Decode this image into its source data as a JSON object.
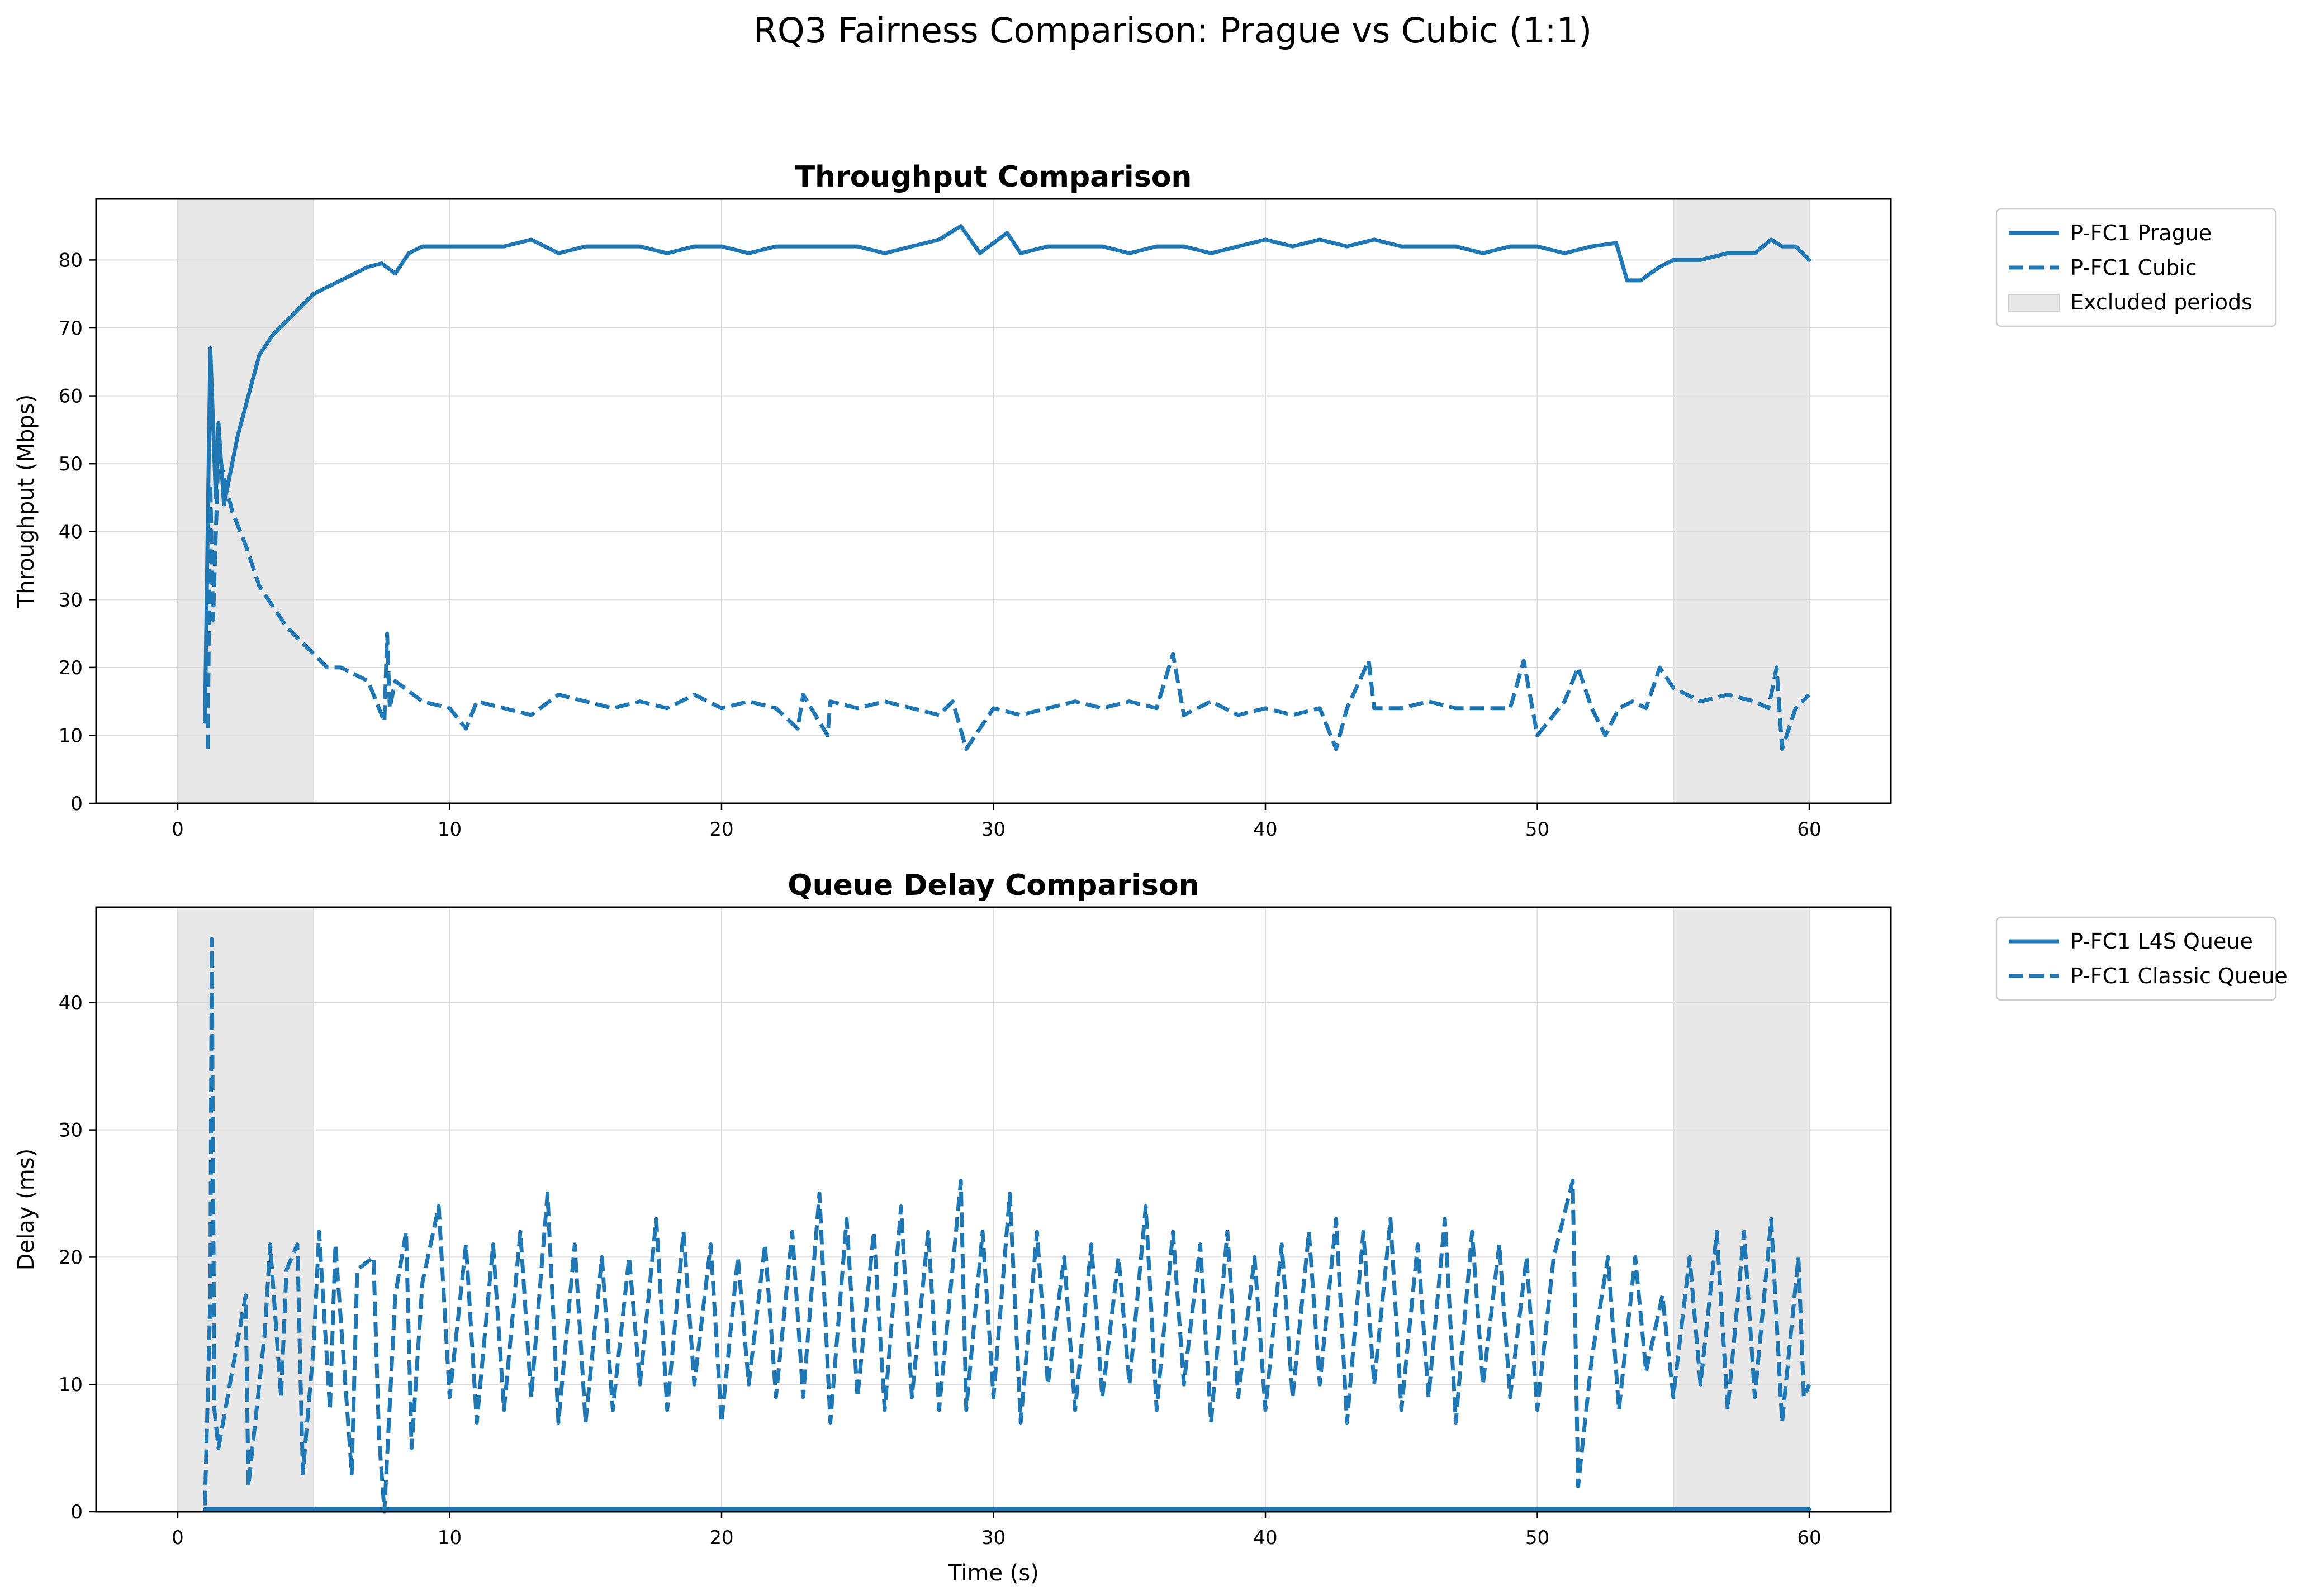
{
  "figure": {
    "suptitle": "RQ3 Fairness Comparison: Prague vs Cubic (1:1)"
  },
  "colors": {
    "series": "#1f77b4",
    "excluded": "#e8e8e8",
    "grid": "#dcdcdc"
  },
  "chart_data": [
    {
      "type": "line",
      "title": "Throughput Comparison",
      "xlabel": "",
      "ylabel": "Throughput (Mbps)",
      "xlim": [
        -3,
        63
      ],
      "ylim": [
        0,
        89
      ],
      "xticks": [
        0,
        10,
        20,
        30,
        40,
        50,
        60
      ],
      "yticks": [
        0,
        10,
        20,
        30,
        40,
        50,
        60,
        70,
        80
      ],
      "grid": true,
      "legend_position": "outside-upper-right",
      "excluded_periods": [
        [
          0,
          5
        ],
        [
          55,
          60
        ]
      ],
      "legend": [
        "P-FC1 Prague",
        "P-FC1 Cubic",
        "Excluded periods"
      ],
      "series": [
        {
          "name": "P-FC1 Prague",
          "style": "solid",
          "x": [
            1.0,
            1.2,
            1.4,
            1.5,
            1.7,
            1.9,
            2.2,
            2.6,
            3.0,
            3.5,
            4.0,
            4.5,
            5.0,
            5.5,
            6.0,
            6.5,
            7.0,
            7.5,
            8.0,
            8.5,
            9.0,
            10,
            11,
            12,
            13,
            14,
            15,
            16,
            17,
            18,
            19,
            20,
            21,
            22,
            23,
            24,
            25,
            26,
            27,
            28,
            28.8,
            29.5,
            30.5,
            31,
            32,
            33,
            34,
            35,
            36,
            37,
            38,
            39,
            40,
            41,
            42,
            43,
            44,
            45,
            46,
            47,
            48,
            49,
            50,
            51,
            52,
            52.9,
            53.3,
            53.8,
            54.5,
            55,
            56,
            57,
            58,
            58.6,
            59,
            59.5,
            60
          ],
          "y": [
            12,
            67,
            45,
            56,
            44,
            48,
            54,
            60,
            66,
            69,
            71,
            73,
            75,
            76,
            77,
            78,
            79,
            79.5,
            78,
            81,
            82,
            82,
            82,
            82,
            83,
            81,
            82,
            82,
            82,
            81,
            82,
            82,
            81,
            82,
            82,
            82,
            82,
            81,
            82,
            83,
            85,
            81,
            84,
            81,
            82,
            82,
            82,
            81,
            82,
            82,
            81,
            82,
            83,
            82,
            83,
            82,
            83,
            82,
            82,
            82,
            81,
            82,
            82,
            81,
            82,
            82.5,
            77,
            77,
            79,
            80,
            80,
            81,
            81,
            83,
            82,
            82,
            80
          ]
        },
        {
          "name": "P-FC1 Cubic",
          "style": "dashed",
          "x": [
            1.1,
            1.2,
            1.3,
            1.5,
            1.7,
            2.0,
            2.5,
            3.0,
            3.5,
            4.0,
            4.5,
            5.0,
            5.5,
            6.0,
            7.0,
            7.6,
            7.7,
            7.8,
            8.0,
            9,
            10,
            10.6,
            11,
            12,
            13,
            14,
            15,
            16,
            17,
            18,
            19,
            20,
            21,
            22,
            22.8,
            23,
            23.9,
            24,
            25,
            26,
            27,
            28,
            28.5,
            29,
            30,
            31,
            32,
            33,
            34,
            35,
            36,
            36.6,
            37,
            38,
            39,
            40,
            41,
            42,
            42.6,
            43,
            43.8,
            44,
            45,
            46,
            47,
            48,
            49,
            49.5,
            50,
            51,
            51.5,
            52,
            52.5,
            53,
            53.5,
            54,
            54.5,
            55,
            56,
            57,
            58,
            58.5,
            58.8,
            59,
            59.5,
            60
          ],
          "y": [
            8,
            47,
            27,
            52,
            48,
            43,
            38,
            32,
            29,
            26,
            24,
            22,
            20,
            20,
            18,
            12,
            25,
            14,
            18,
            15,
            14,
            11,
            15,
            14,
            13,
            16,
            15,
            14,
            15,
            14,
            16,
            14,
            15,
            14,
            11,
            16,
            10,
            15,
            14,
            15,
            14,
            13,
            15,
            8,
            14,
            13,
            14,
            15,
            14,
            15,
            14,
            22,
            13,
            15,
            13,
            14,
            13,
            14,
            8,
            14,
            21,
            14,
            14,
            15,
            14,
            14,
            14,
            21,
            10,
            15,
            20,
            14,
            10,
            14,
            15,
            14,
            20,
            17,
            15,
            16,
            15,
            14,
            20,
            8,
            14,
            16
          ]
        }
      ]
    },
    {
      "type": "line",
      "title": "Queue Delay Comparison",
      "xlabel": "Time (s)",
      "ylabel": "Delay (ms)",
      "xlim": [
        -3,
        63
      ],
      "ylim": [
        0,
        47.5
      ],
      "xticks": [
        0,
        10,
        20,
        30,
        40,
        50,
        60
      ],
      "yticks": [
        0,
        10,
        20,
        30,
        40
      ],
      "grid": true,
      "legend_position": "outside-upper-right",
      "excluded_periods": [
        [
          0,
          5
        ],
        [
          55,
          60
        ]
      ],
      "legend": [
        "P-FC1 L4S Queue",
        "P-FC1 Classic Queue"
      ],
      "series": [
        {
          "name": "P-FC1 L4S Queue",
          "style": "solid",
          "x": [
            1.0,
            60.0
          ],
          "y": [
            0.2,
            0.2
          ]
        },
        {
          "name": "P-FC1 Classic Queue",
          "style": "dashed",
          "x": [
            1.0,
            1.2,
            1.25,
            1.35,
            1.5,
            2.0,
            2.5,
            2.6,
            3.2,
            3.4,
            3.8,
            4.0,
            4.4,
            4.6,
            5.0,
            5.2,
            5.6,
            5.8,
            6.4,
            6.6,
            7.2,
            7.4,
            7.6,
            8.0,
            8.4,
            8.6,
            9.0,
            9.6,
            10.0,
            10.6,
            11.0,
            11.6,
            12.0,
            12.6,
            13.0,
            13.6,
            14.0,
            14.6,
            15.0,
            15.6,
            16.0,
            16.6,
            17.0,
            17.6,
            18.0,
            18.6,
            19.0,
            19.6,
            20.0,
            20.6,
            21.0,
            21.6,
            22.0,
            22.6,
            23.0,
            23.6,
            24.0,
            24.6,
            25.0,
            25.6,
            26.0,
            26.6,
            27.0,
            27.6,
            28.0,
            28.8,
            29.0,
            29.6,
            30.0,
            30.6,
            31.0,
            31.6,
            32.0,
            32.6,
            33.0,
            33.6,
            34.0,
            34.6,
            35.0,
            35.6,
            36.0,
            36.6,
            37.0,
            37.6,
            38.0,
            38.6,
            39.0,
            39.6,
            40.0,
            40.6,
            41.0,
            41.6,
            42.0,
            42.6,
            43.0,
            43.6,
            44.0,
            44.6,
            45.0,
            45.6,
            46.0,
            46.6,
            47.0,
            47.6,
            48.0,
            48.6,
            49.0,
            49.6,
            50.0,
            50.6,
            51.3,
            51.5,
            52.0,
            52.6,
            53.0,
            53.6,
            54.0,
            54.6,
            55.0,
            55.6,
            56.0,
            56.6,
            57.0,
            57.6,
            58.0,
            58.6,
            59.0,
            59.6,
            59.8,
            60.0
          ],
          "y": [
            0.5,
            17,
            45,
            8,
            5,
            11,
            17,
            2,
            14,
            21,
            9,
            19,
            21,
            3,
            13,
            22,
            8,
            21,
            3,
            19,
            20,
            6,
            0,
            17,
            22,
            5,
            18,
            24,
            9,
            21,
            7,
            21,
            8,
            22,
            9,
            25,
            7,
            21,
            7,
            20,
            8,
            20,
            10,
            23,
            8,
            22,
            10,
            21,
            7,
            20,
            10,
            21,
            9,
            22,
            9,
            25,
            7,
            23,
            9,
            22,
            8,
            24,
            9,
            22,
            8,
            26,
            8,
            22,
            9,
            25,
            7,
            22,
            10,
            20,
            8,
            21,
            9,
            20,
            10,
            24,
            8,
            22,
            10,
            21,
            7,
            22,
            9,
            20,
            8,
            21,
            9,
            22,
            10,
            23,
            7,
            22,
            10,
            23,
            8,
            21,
            9,
            23,
            7,
            22,
            10,
            21,
            9,
            20,
            8,
            20,
            26,
            2,
            12,
            20,
            8,
            20,
            11,
            17,
            9,
            20,
            10,
            22,
            8,
            22,
            9,
            23,
            7,
            20,
            9,
            10
          ]
        }
      ]
    }
  ]
}
